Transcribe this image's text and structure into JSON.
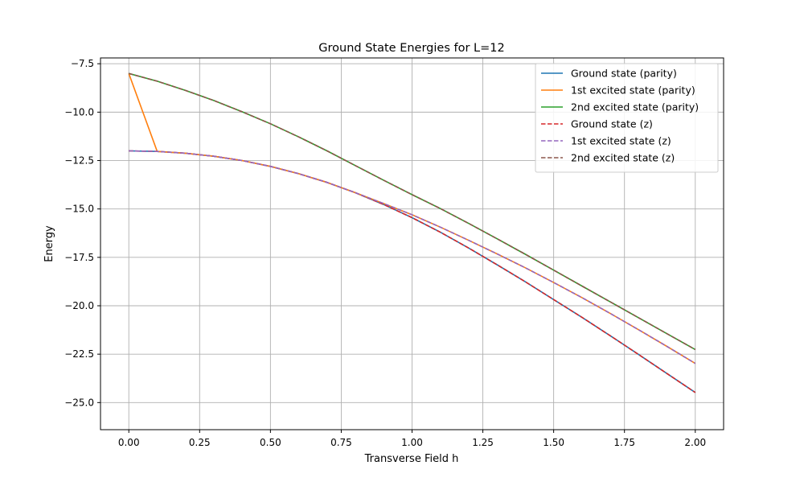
{
  "chart_data": {
    "type": "line",
    "title": "Ground State Energies for L=12",
    "xlabel": "Transverse Field h",
    "ylabel": "Energy",
    "xlim": [
      -0.1,
      2.1
    ],
    "ylim": [
      -26.4,
      -7.2
    ],
    "xticks": [
      0.0,
      0.25,
      0.5,
      0.75,
      1.0,
      1.25,
      1.5,
      1.75,
      2.0
    ],
    "xtick_labels": [
      "0.00",
      "0.25",
      "0.50",
      "0.75",
      "1.00",
      "1.25",
      "1.50",
      "1.75",
      "2.00"
    ],
    "yticks": [
      -25.0,
      -22.5,
      -20.0,
      -17.5,
      -15.0,
      -12.5,
      -10.0,
      -7.5
    ],
    "ytick_labels": [
      "−25.0",
      "−22.5",
      "−20.0",
      "−17.5",
      "−15.0",
      "−12.5",
      "−10.0",
      "−7.5"
    ],
    "grid": true,
    "legend_position": "top-right",
    "series": [
      {
        "name": "Ground state (parity)",
        "color": "#1f77b4",
        "dash": "solid",
        "x": [
          0.0,
          0.1,
          0.2,
          0.3,
          0.4,
          0.5,
          0.6,
          0.7,
          0.8,
          0.9,
          1.0,
          1.1,
          1.2,
          1.3,
          1.4,
          1.5,
          1.6,
          1.7,
          1.8,
          1.9,
          2.0
        ],
        "values": [
          -12.0,
          -12.03,
          -12.12,
          -12.28,
          -12.5,
          -12.8,
          -13.18,
          -13.63,
          -14.16,
          -14.77,
          -15.45,
          -16.2,
          -17.02,
          -17.88,
          -18.76,
          -19.68,
          -20.6,
          -21.55,
          -22.52,
          -23.5,
          -24.48
        ]
      },
      {
        "name": "1st excited state (parity)",
        "color": "#ff7f0e",
        "dash": "solid",
        "x": [
          0.0,
          0.1,
          0.2,
          0.3,
          0.4,
          0.5,
          0.6,
          0.7,
          0.8,
          0.9,
          1.0,
          1.1,
          1.2,
          1.3,
          1.4,
          1.5,
          1.6,
          1.7,
          1.8,
          1.9,
          2.0
        ],
        "values": [
          -8.0,
          -12.03,
          -12.12,
          -12.28,
          -12.5,
          -12.8,
          -13.18,
          -13.63,
          -14.16,
          -14.72,
          -15.3,
          -15.94,
          -16.62,
          -17.32,
          -18.04,
          -18.8,
          -19.58,
          -20.4,
          -21.24,
          -22.1,
          -22.98
        ]
      },
      {
        "name": "2nd excited state (parity)",
        "color": "#2ca02c",
        "dash": "solid",
        "x": [
          0.0,
          0.1,
          0.2,
          0.3,
          0.4,
          0.5,
          0.6,
          0.7,
          0.8,
          0.9,
          1.0,
          1.1,
          1.2,
          1.3,
          1.4,
          1.5,
          1.6,
          1.7,
          1.8,
          1.9,
          2.0
        ],
        "values": [
          -8.0,
          -8.4,
          -8.88,
          -9.4,
          -9.98,
          -10.6,
          -11.28,
          -12.0,
          -12.76,
          -13.52,
          -14.26,
          -14.98,
          -15.75,
          -16.54,
          -17.34,
          -18.16,
          -18.98,
          -19.8,
          -20.62,
          -21.44,
          -22.26
        ]
      },
      {
        "name": "Ground state (z)",
        "color": "#d62728",
        "dash": "dashed",
        "x": [
          0.0,
          0.1,
          0.2,
          0.3,
          0.4,
          0.5,
          0.6,
          0.7,
          0.8,
          0.9,
          1.0,
          1.1,
          1.2,
          1.3,
          1.4,
          1.5,
          1.6,
          1.7,
          1.8,
          1.9,
          2.0
        ],
        "values": [
          -12.0,
          -12.03,
          -12.12,
          -12.28,
          -12.5,
          -12.8,
          -13.18,
          -13.63,
          -14.16,
          -14.77,
          -15.45,
          -16.2,
          -17.02,
          -17.88,
          -18.76,
          -19.68,
          -20.6,
          -21.55,
          -22.52,
          -23.5,
          -24.48
        ]
      },
      {
        "name": "1st excited state (z)",
        "color": "#9467bd",
        "dash": "dashed",
        "x": [
          0.0,
          0.1,
          0.2,
          0.3,
          0.4,
          0.5,
          0.6,
          0.7,
          0.8,
          0.9,
          1.0,
          1.1,
          1.2,
          1.3,
          1.4,
          1.5,
          1.6,
          1.7,
          1.8,
          1.9,
          2.0
        ],
        "values": [
          -12.0,
          -12.03,
          -12.12,
          -12.28,
          -12.5,
          -12.8,
          -13.18,
          -13.63,
          -14.16,
          -14.72,
          -15.3,
          -15.94,
          -16.62,
          -17.32,
          -18.04,
          -18.8,
          -19.58,
          -20.4,
          -21.24,
          -22.1,
          -22.98
        ]
      },
      {
        "name": "2nd excited state (z)",
        "color": "#8c564b",
        "dash": "dashed",
        "x": [
          0.0,
          0.1,
          0.2,
          0.3,
          0.4,
          0.5,
          0.6,
          0.7,
          0.8,
          0.9,
          1.0,
          1.1,
          1.2,
          1.3,
          1.4,
          1.5,
          1.6,
          1.7,
          1.8,
          1.9,
          2.0
        ],
        "values": [
          -8.0,
          -8.4,
          -8.88,
          -9.4,
          -9.98,
          -10.6,
          -11.28,
          -12.0,
          -12.76,
          -13.52,
          -14.26,
          -14.98,
          -15.75,
          -16.54,
          -17.34,
          -18.16,
          -18.98,
          -19.8,
          -20.62,
          -21.44,
          -22.26
        ]
      }
    ]
  }
}
